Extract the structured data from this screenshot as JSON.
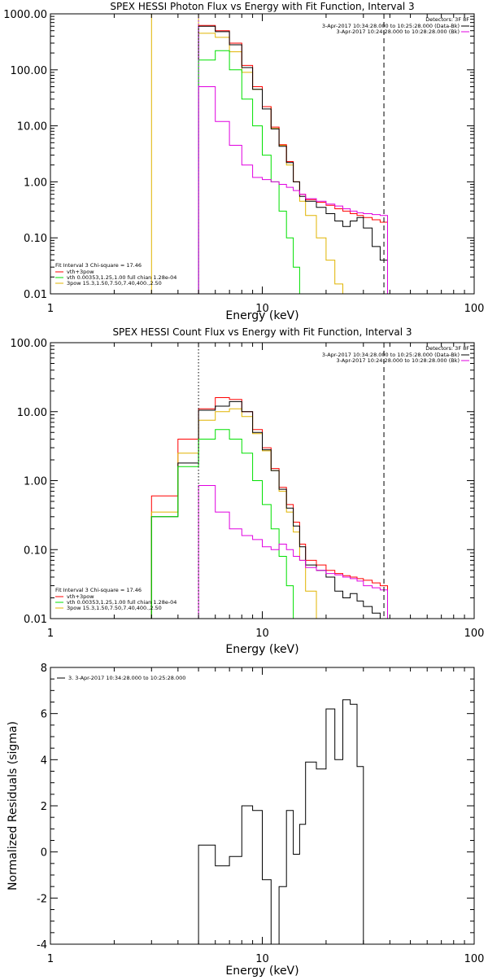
{
  "colors": {
    "black": "#000000",
    "red": "#ff0000",
    "green": "#00e000",
    "yellow": "#e0b400",
    "magenta": "#e000e0",
    "purple": "#a000ff"
  },
  "chart_data": [
    {
      "type": "line",
      "title": "SPEX HESSI Photon Flux vs Energy with Fit Function, Interval 3",
      "xlabel": "Energy (keV)",
      "ylabel": "",
      "xscale": "log",
      "yscale": "log",
      "xlim": [
        1,
        100
      ],
      "ylim": [
        0.01,
        1000
      ],
      "xticks": [
        {
          "v": 1,
          "label": "1"
        },
        {
          "v": 10,
          "label": "10"
        },
        {
          "v": 100,
          "label": "100"
        }
      ],
      "yticks": [
        {
          "v": 1000,
          "label": "1000.00"
        },
        {
          "v": 100,
          "label": "100.00"
        },
        {
          "v": 10,
          "label": "10.00"
        },
        {
          "v": 1,
          "label": "1.00"
        },
        {
          "v": 0.1,
          "label": "0.10"
        },
        {
          "v": 0.01,
          "label": "0.01"
        }
      ],
      "edges": [
        3,
        4,
        5,
        6,
        7,
        8,
        9,
        10,
        11,
        12,
        13,
        14,
        15,
        16,
        18,
        20,
        22,
        24,
        26,
        28,
        30,
        33,
        36,
        39
      ],
      "vlines": [
        {
          "x": 5,
          "style": "dotted",
          "color": "purple"
        },
        {
          "x": 37.5,
          "style": "dashed",
          "color": "black"
        }
      ],
      "legend_tr": {
        "header": "Detectors: 3F 8F",
        "entries": [
          {
            "text": "3-Apr-2017 10:34:28.000 to 10:25:28.000 (Data-Bk)",
            "color": "black"
          },
          {
            "text": "3-Apr-2017 10:24:28.000 to 10:28:28.000 (Bk)",
            "color": "magenta"
          }
        ]
      },
      "legend_bl": {
        "header": "Fit Interval 3   Chi-square = 17.46",
        "entries": [
          {
            "text": "vth+3pow",
            "color": "red"
          },
          {
            "text": "vth 0.00353,1.25,1.00  full chian 1.28e-04",
            "color": "green"
          },
          {
            "text": "3pow 15.3,1.50,7.50,7.40,400.,2.50",
            "color": "yellow"
          }
        ]
      },
      "series": [
        {
          "color": "yellow",
          "start": 0,
          "values": [
            1000,
            1000,
            450,
            380,
            210,
            90,
            45,
            22,
            9,
            4.5,
            2,
            1,
            0.45,
            0.25,
            0.1,
            0.04,
            0.015,
            0.01
          ]
        },
        {
          "color": "red",
          "start": 2,
          "values": [
            620,
            500,
            300,
            120,
            50,
            22,
            9.5,
            4.6,
            2.3,
            1.0,
            0.6,
            0.48,
            0.43,
            0.38,
            0.33,
            0.3,
            0.27,
            0.25,
            0.23,
            0.21,
            0.19
          ]
        },
        {
          "color": "black",
          "start": 2,
          "values": [
            600,
            480,
            280,
            110,
            45,
            20,
            8.8,
            4.3,
            2.2,
            1.0,
            0.55,
            0.45,
            0.35,
            0.27,
            0.2,
            0.16,
            0.2,
            0.23,
            0.15,
            0.07,
            0.04
          ]
        },
        {
          "color": "green",
          "start": 2,
          "values": [
            150,
            220,
            100,
            30,
            10,
            3,
            1,
            0.3,
            0.1,
            0.03,
            0.01
          ]
        },
        {
          "color": "magenta",
          "start": 2,
          "values": [
            50,
            12,
            4.5,
            2,
            1.2,
            1.1,
            1,
            0.9,
            0.8,
            0.7,
            0.6,
            0.5,
            0.45,
            0.4,
            0.37,
            0.33,
            0.3,
            0.28,
            0.27,
            0.26,
            0.25
          ]
        }
      ]
    },
    {
      "type": "line",
      "title": "SPEX HESSI Count Flux vs Energy with Fit Function, Interval 3",
      "xlabel": "Energy (keV)",
      "ylabel": "",
      "xscale": "log",
      "yscale": "log",
      "xlim": [
        1,
        100
      ],
      "ylim": [
        0.01,
        100
      ],
      "xticks": [
        {
          "v": 1,
          "label": "1"
        },
        {
          "v": 10,
          "label": "10"
        },
        {
          "v": 100,
          "label": "100"
        }
      ],
      "yticks": [
        {
          "v": 100,
          "label": "100.00"
        },
        {
          "v": 10,
          "label": "10.00"
        },
        {
          "v": 1,
          "label": "1.00"
        },
        {
          "v": 0.1,
          "label": "0.10"
        },
        {
          "v": 0.01,
          "label": "0.01"
        }
      ],
      "edges": [
        3,
        4,
        5,
        6,
        7,
        8,
        9,
        10,
        11,
        12,
        13,
        14,
        15,
        16,
        18,
        20,
        22,
        24,
        26,
        28,
        30,
        33,
        36,
        39
      ],
      "vlines": [
        {
          "x": 5,
          "style": "dotted",
          "color": "black"
        },
        {
          "x": 37.5,
          "style": "dashed",
          "color": "black"
        }
      ],
      "legend_tr": {
        "header": "Detectors: 3F 8F",
        "entries": [
          {
            "text": "3-Apr-2017 10:34:28.000 to 10:25:28.000 (Data-Bk)",
            "color": "black"
          },
          {
            "text": "3-Apr-2017 10:24:28.000 to 10:28:28.000 (Bk)",
            "color": "magenta"
          }
        ]
      },
      "legend_bl": {
        "header": "Fit Interval 3   Chi-square = 17.46",
        "entries": [
          {
            "text": "vth+3pow",
            "color": "red"
          },
          {
            "text": "vth 0.00353,1.25,1.00  full chian 1.28e-04",
            "color": "green"
          },
          {
            "text": "3pow 15.3,1.50,7.50,7.40,400.,2.50",
            "color": "yellow"
          }
        ]
      },
      "series": [
        {
          "color": "red",
          "start": 0,
          "values": [
            0.6,
            4,
            11,
            16,
            15,
            10,
            5.5,
            3,
            1.5,
            0.8,
            0.45,
            0.25,
            0.12,
            0.07,
            0.06,
            0.05,
            0.045,
            0.042,
            0.04,
            0.038,
            0.036,
            0.033,
            0.03
          ]
        },
        {
          "color": "yellow",
          "start": 0,
          "values": [
            0.35,
            2.5,
            7.5,
            10,
            11,
            8.5,
            4.8,
            2.7,
            1.4,
            0.7,
            0.35,
            0.18,
            0.07,
            0.025,
            0.01
          ]
        },
        {
          "color": "black",
          "start": 0,
          "values": [
            0.3,
            1.8,
            10.5,
            12,
            14,
            10,
            5,
            2.8,
            1.4,
            0.75,
            0.4,
            0.22,
            0.11,
            0.06,
            0.05,
            0.04,
            0.025,
            0.02,
            0.023,
            0.018,
            0.015,
            0.012,
            0.01
          ]
        },
        {
          "color": "green",
          "start": 0,
          "values": [
            0.3,
            1.6,
            4,
            5.5,
            4,
            2.5,
            1,
            0.45,
            0.2,
            0.08,
            0.03,
            0.01
          ]
        },
        {
          "color": "magenta",
          "start": 2,
          "values": [
            0.85,
            0.35,
            0.2,
            0.16,
            0.14,
            0.11,
            0.1,
            0.12,
            0.1,
            0.08,
            0.07,
            0.055,
            0.05,
            0.045,
            0.043,
            0.04,
            0.038,
            0.035,
            0.03,
            0.028,
            0.026
          ]
        }
      ]
    },
    {
      "type": "line",
      "title": "",
      "xlabel": "Energy (keV)",
      "ylabel": "Normalized Residuals (sigma)",
      "xscale": "log",
      "yscale": "linear",
      "xlim": [
        1,
        100
      ],
      "ylim": [
        -4,
        8
      ],
      "xticks": [
        {
          "v": 1,
          "label": "1"
        },
        {
          "v": 10,
          "label": "10"
        },
        {
          "v": 100,
          "label": "100"
        }
      ],
      "yticks": [
        {
          "v": 8,
          "label": "8"
        },
        {
          "v": 6,
          "label": "6"
        },
        {
          "v": 4,
          "label": "4"
        },
        {
          "v": 2,
          "label": "2"
        },
        {
          "v": 0,
          "label": "0"
        },
        {
          "v": -2,
          "label": "-2"
        },
        {
          "v": -4,
          "label": "-4"
        }
      ],
      "edges": [
        5,
        6,
        7,
        8,
        9,
        10,
        11,
        12,
        13,
        14,
        15,
        16,
        18,
        20,
        22,
        24,
        26,
        28,
        30,
        33,
        36,
        39
      ],
      "vlines": [],
      "legend_tl": {
        "entries": [
          {
            "text": "3. 3-Apr-2017 10:34:28.000 to 10:25:28.000",
            "color": "black"
          }
        ]
      },
      "series": [
        {
          "color": "black",
          "start": 0,
          "values": [
            0.3,
            -0.6,
            -0.2,
            2.0,
            1.8,
            -1.2,
            -4.0,
            -1.5,
            1.8,
            -0.1,
            1.2,
            3.9,
            3.6,
            6.2,
            4.0,
            6.6,
            6.4,
            3.7
          ]
        }
      ]
    }
  ]
}
